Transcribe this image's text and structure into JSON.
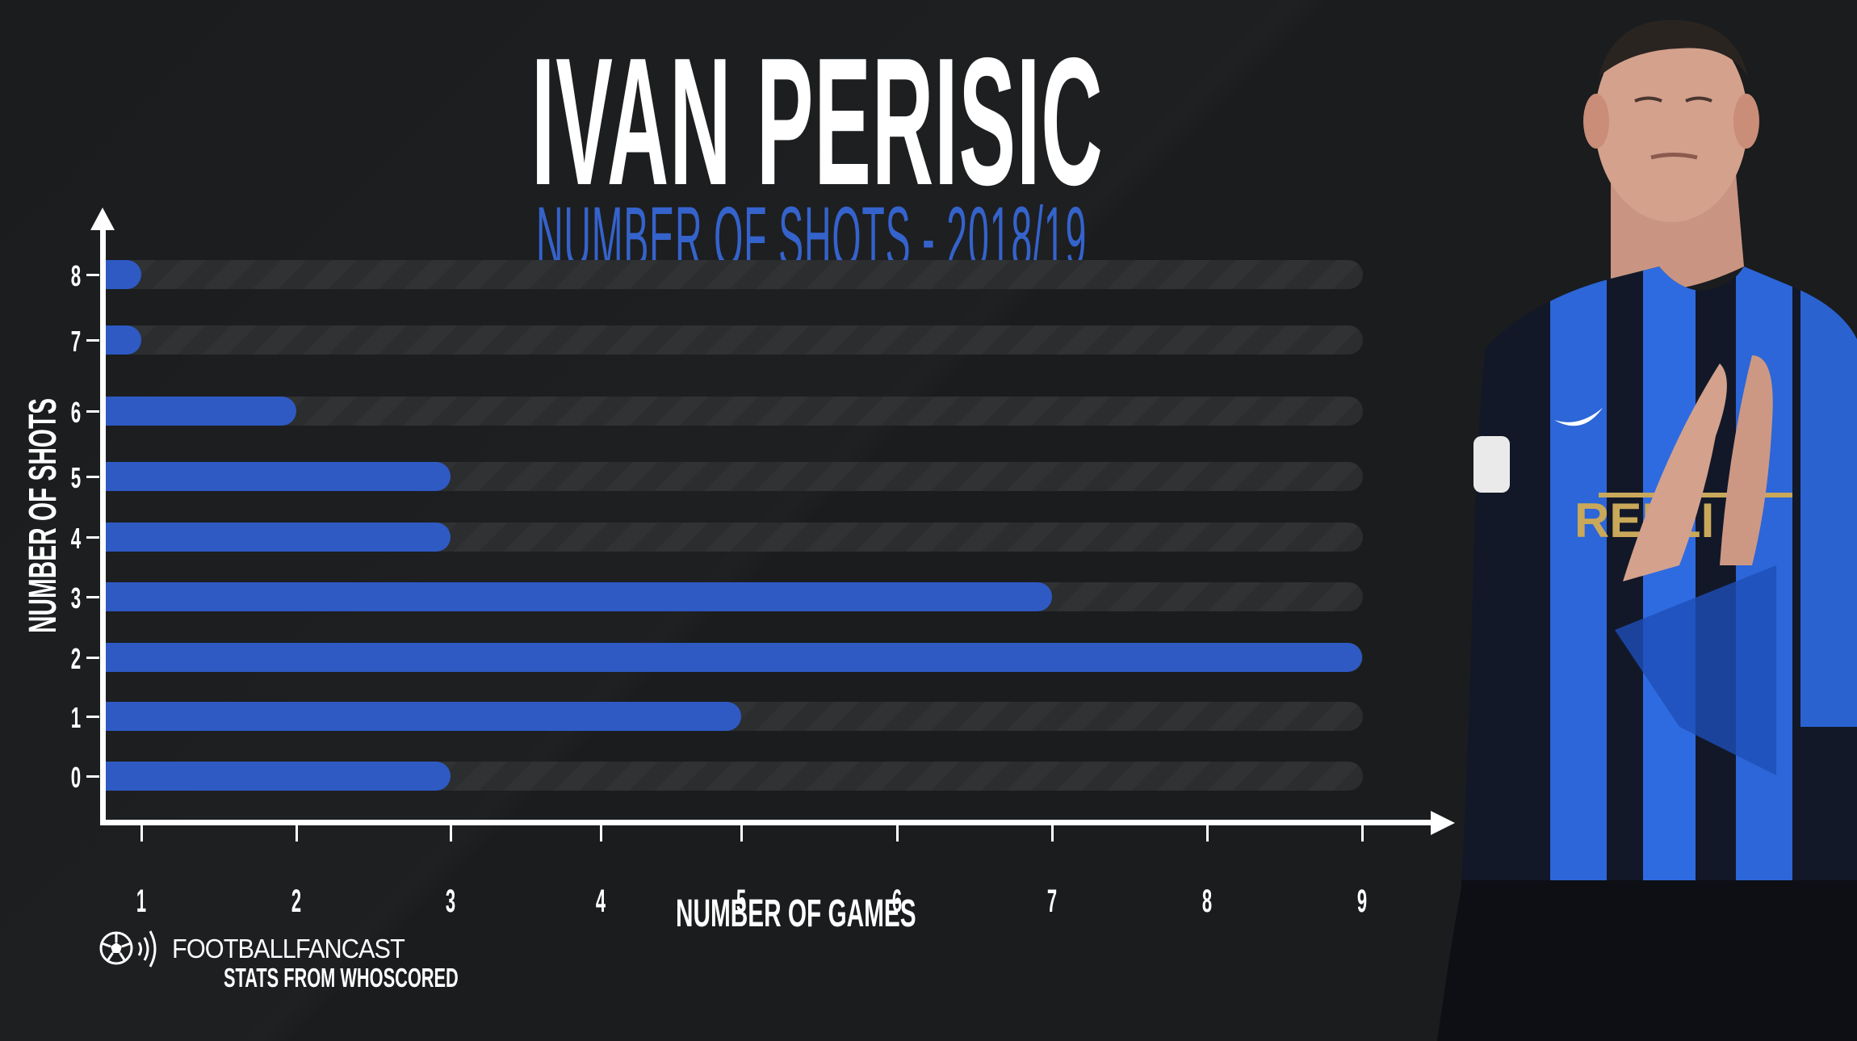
{
  "header": {
    "title": "IVAN PERISIC",
    "subtitle": "NUMBER OF SHOTS - 2018/19"
  },
  "axes": {
    "x_label": "NUMBER OF GAMES",
    "y_label": "NUMBER OF SHOTS",
    "x_ticks": [
      "1",
      "2",
      "3",
      "4",
      "5",
      "6",
      "7",
      "8",
      "9"
    ],
    "y_ticks": [
      "8",
      "7",
      "6",
      "5",
      "4",
      "3",
      "2",
      "1",
      "0"
    ]
  },
  "branding": {
    "name": "FOOTBALLFANCAST",
    "source": "STATS FROM WHOSCORED",
    "icon": "football-sound-icon"
  },
  "colors": {
    "background": "#1a1c1e",
    "bar": "#2f5ac4",
    "track": "#2d2f31",
    "title": "#ffffff",
    "subtitle": "#3563cc"
  },
  "photo": {
    "description": "Player applauding in blue-and-black striped Inter jersey"
  },
  "chart_data": {
    "type": "bar",
    "orientation": "horizontal",
    "title": "IVAN PERISIC",
    "subtitle": "NUMBER OF SHOTS - 2018/19",
    "xlabel": "NUMBER OF GAMES",
    "ylabel": "NUMBER OF SHOTS",
    "categories": [
      "8",
      "7",
      "6",
      "5",
      "4",
      "3",
      "2",
      "1",
      "0"
    ],
    "values": [
      1,
      1,
      2,
      3,
      3,
      7,
      9,
      5,
      3
    ],
    "xlim": [
      1,
      9
    ],
    "grid": false,
    "legend": null
  }
}
